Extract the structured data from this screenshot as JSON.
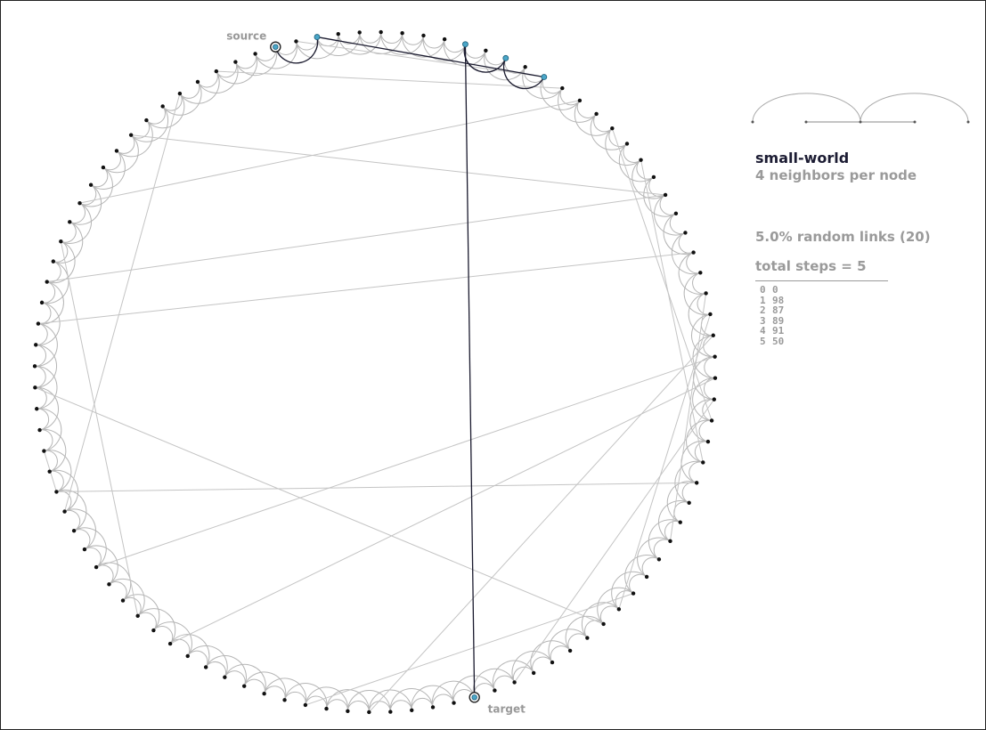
{
  "network": {
    "type": "small-world",
    "nodes": 100,
    "neighbors_per_node": 4,
    "random_link_percent": 5.0,
    "random_link_count": 20,
    "source_node": 0,
    "target_node": 50,
    "path": [
      0,
      98,
      87,
      89,
      91,
      50
    ],
    "random_links": [
      [
        5,
        27
      ],
      [
        3,
        86
      ],
      [
        8,
        79
      ],
      [
        12,
        85
      ],
      [
        14,
        33
      ],
      [
        16,
        79
      ],
      [
        18,
        76
      ],
      [
        21,
        57
      ],
      [
        24,
        26
      ],
      [
        26,
        65
      ],
      [
        30,
        71
      ],
      [
        35,
        70
      ],
      [
        42,
        59
      ],
      [
        45,
        72
      ],
      [
        52,
        69
      ],
      [
        58,
        73
      ],
      [
        62,
        74
      ],
      [
        66,
        81
      ],
      [
        68,
        83
      ],
      [
        99,
        87
      ]
    ],
    "colors": {
      "node": "#111111",
      "path_node": "#4aa6c8",
      "lattice_edge": "#b5b5b5",
      "random_edge": "#c4c4c4",
      "path_edge": "#1a1a2e"
    }
  },
  "labels": {
    "source": "source",
    "target": "target"
  },
  "legend": {
    "title": "small-world",
    "neighbors_text": "4 neighbors per node",
    "random_links_text": "5.0% random links (20)",
    "total_steps_text": "total steps = 5"
  },
  "steps": [
    {
      "step": "0",
      "node": "0"
    },
    {
      "step": "1",
      "node": "98"
    },
    {
      "step": "2",
      "node": "87"
    },
    {
      "step": "3",
      "node": "89"
    },
    {
      "step": "4",
      "node": "91"
    },
    {
      "step": "5",
      "node": "50"
    }
  ]
}
